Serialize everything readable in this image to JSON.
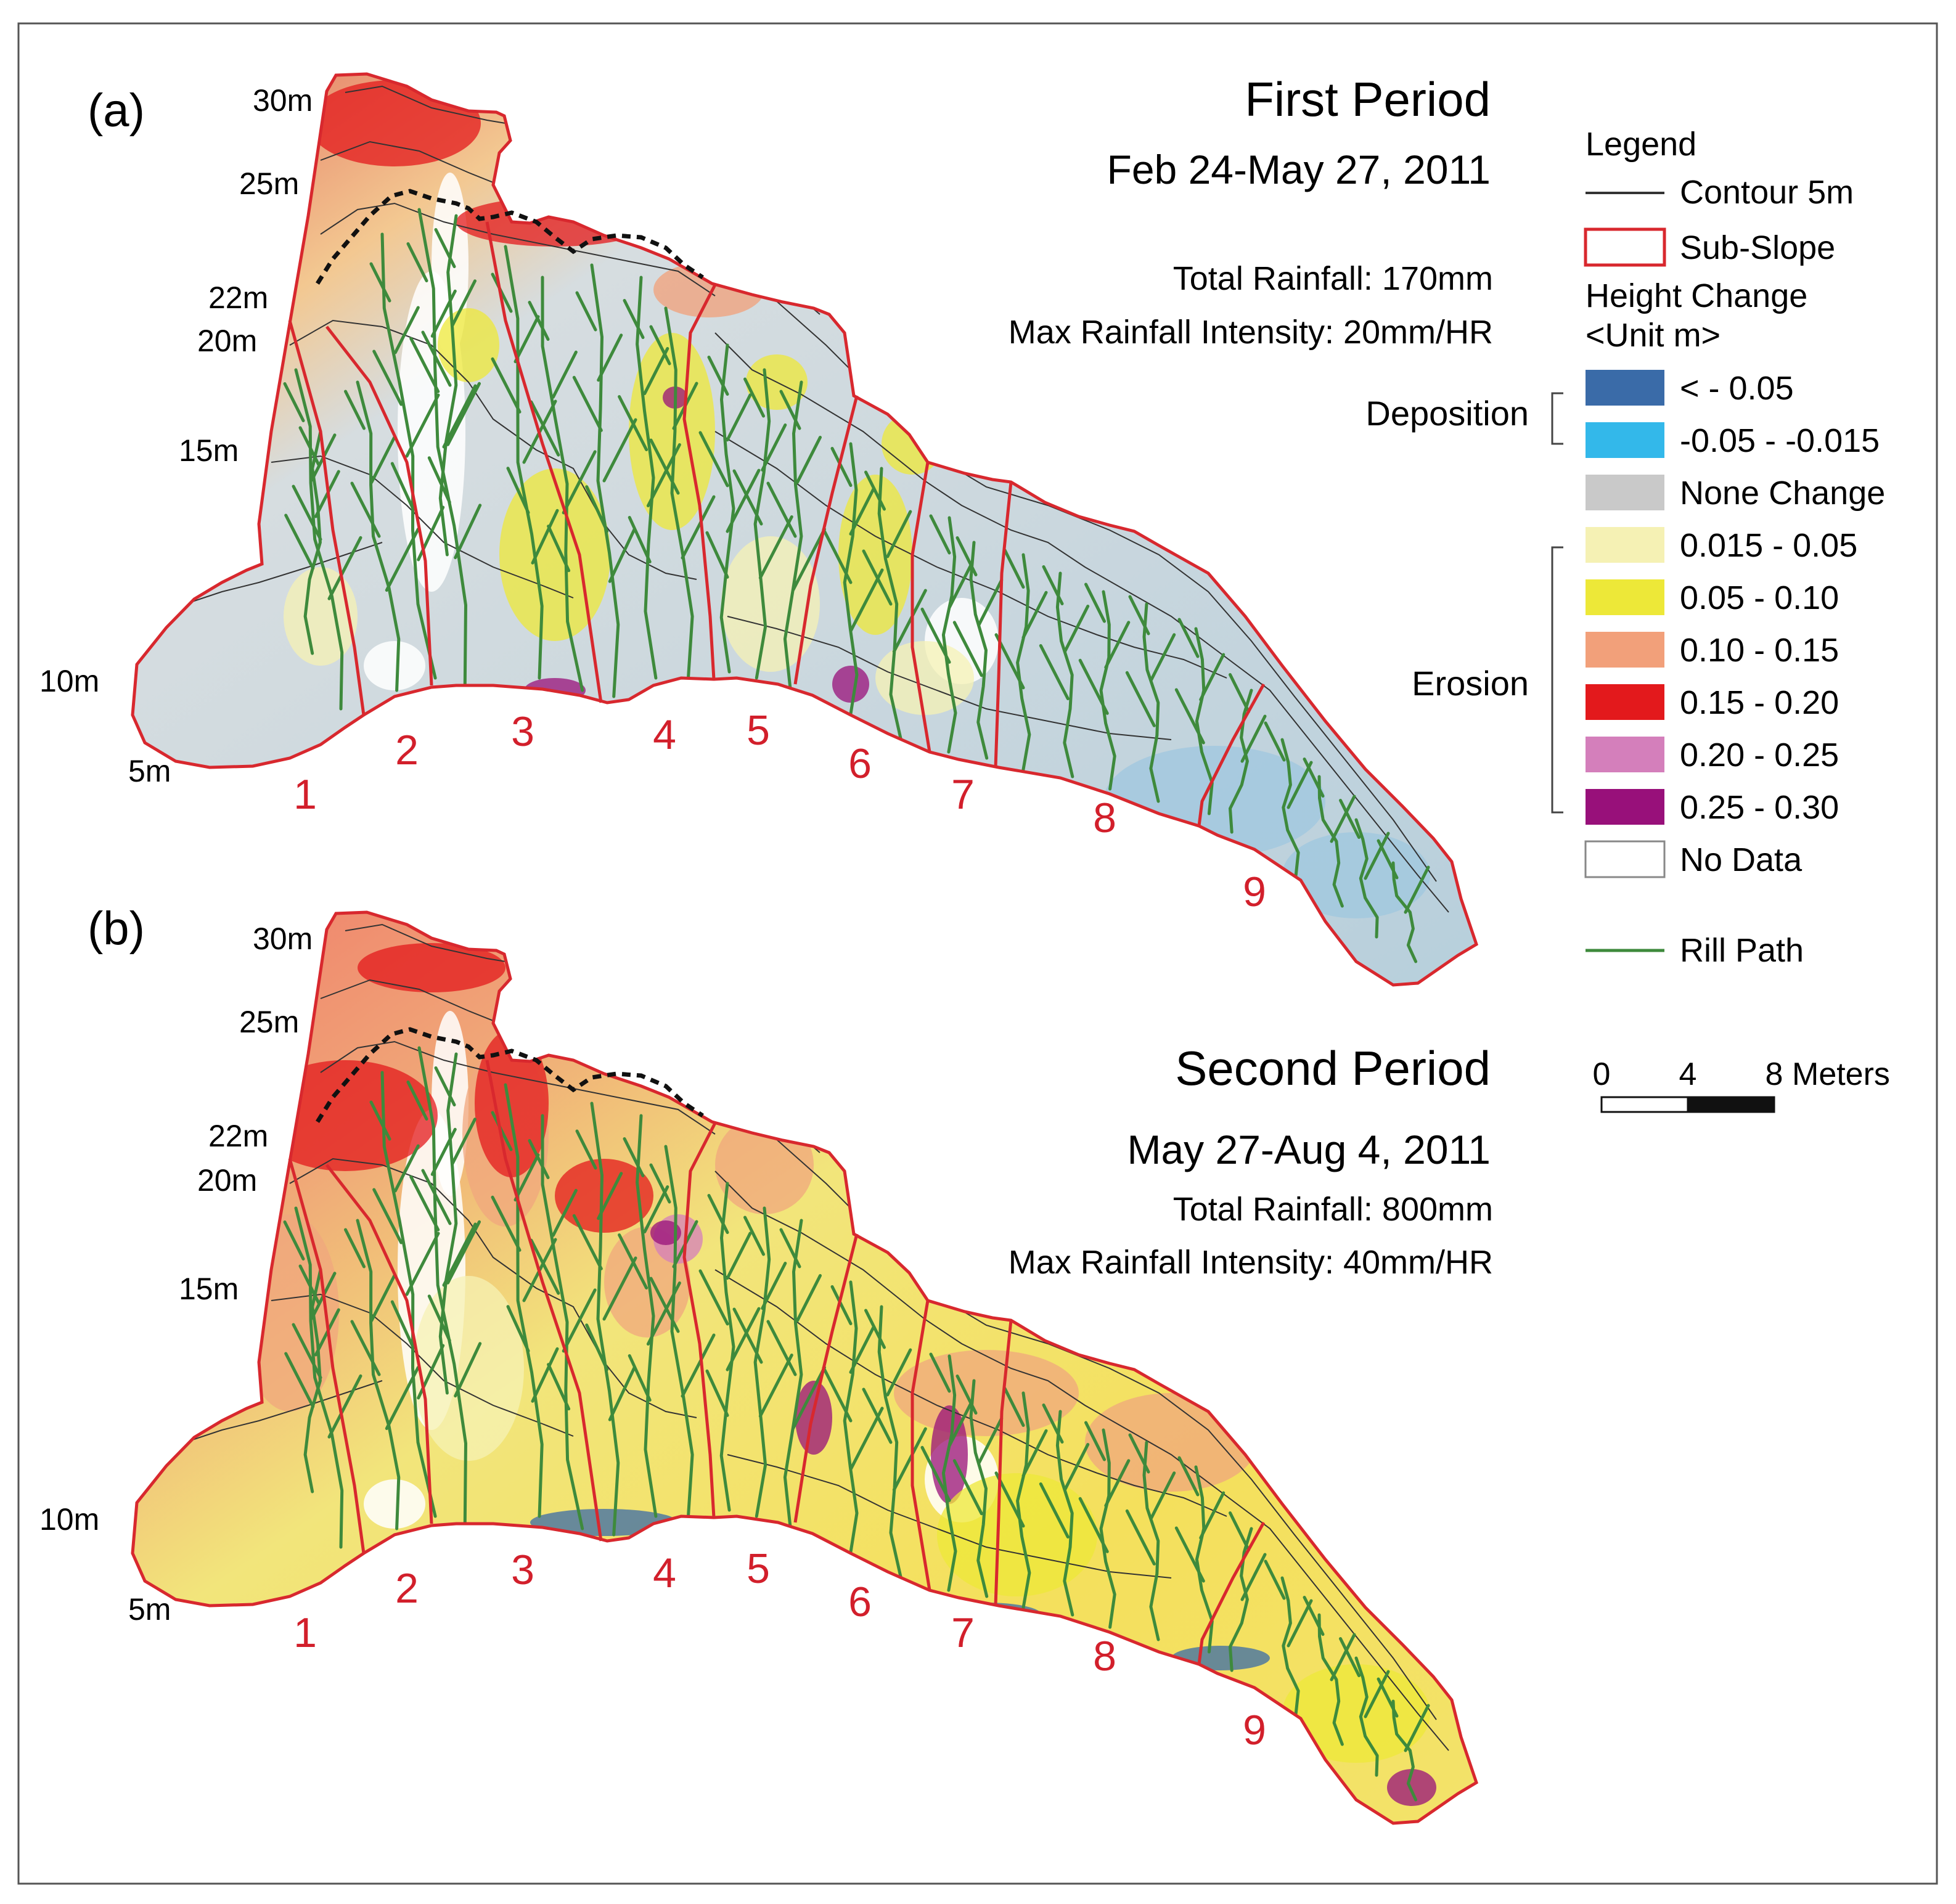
{
  "panels": [
    {
      "id": "a",
      "label": "(a)",
      "title": "First Period",
      "dates": "Feb 24-May 27, 2011",
      "rainfall": "Total Rainfall: 170mm",
      "intensity": "Max Rainfall Intensity: 20mm/HR",
      "dominant_class": "none-change"
    },
    {
      "id": "b",
      "label": "(b)",
      "title": "Second Period",
      "dates": "May 27-Aug 4, 2011",
      "rainfall": "Total Rainfall: 800mm",
      "intensity": "Max Rainfall Intensity: 40mm/HR",
      "dominant_class": "erosion"
    }
  ],
  "contour_labels": [
    "30m",
    "25m",
    "22m",
    "20m",
    "15m",
    "10m",
    "5m"
  ],
  "subslope_labels": [
    "1",
    "2",
    "3",
    "4",
    "5",
    "6",
    "7",
    "8",
    "9"
  ],
  "legend": {
    "title": "Legend",
    "contour": "Contour 5m",
    "subslope": "Sub-Slope",
    "height_change": "Height Change",
    "unit": "<Unit m>",
    "group_deposition": "Deposition",
    "group_erosion": "Erosion",
    "classes": [
      {
        "label": "< - 0.05",
        "color": "#3a6ba8"
      },
      {
        "label": "-0.05 - -0.015",
        "color": "#33b8ea"
      },
      {
        "label": "None Change",
        "color": "#c9c9c9"
      },
      {
        "label": "0.015 - 0.05",
        "color": "#f5f1b4"
      },
      {
        "label": "0.05 - 0.10",
        "color": "#ede838"
      },
      {
        "label": "0.10 - 0.15",
        "color": "#f2a07a"
      },
      {
        "label": "0.15 - 0.20",
        "color": "#e3191c"
      },
      {
        "label": "0.20 - 0.25",
        "color": "#d47fbb"
      },
      {
        "label": "0.25 - 0.30",
        "color": "#98107a"
      },
      {
        "label": "No Data",
        "color": "#ffffff"
      }
    ],
    "rill": "Rill Path"
  },
  "scalebar": {
    "ticks": [
      "0",
      "4",
      "8"
    ],
    "unit": "Meters"
  },
  "colors": {
    "subslope": "#d8282e",
    "rill": "#3e8a3c",
    "contour": "#333333",
    "label_red": "#d21f2b",
    "frame": "#555555",
    "none_change_map": "#b9ccd6",
    "erosion_light": "#f3eeaa",
    "erosion_orange": "#f0a77e"
  }
}
